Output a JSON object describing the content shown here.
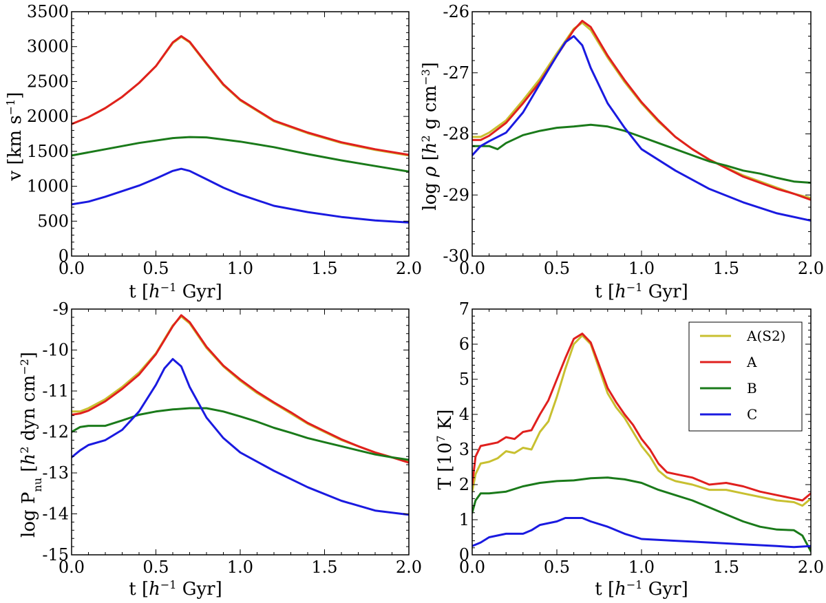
{
  "chart_data": [
    {
      "type": "line",
      "id": "velocity",
      "xlabel": "t [h⁻¹ Gyr]",
      "ylabel": "v [km s⁻¹]",
      "xlim": [
        0.0,
        2.0
      ],
      "ylim": [
        0,
        3500
      ],
      "xticks": [
        0.0,
        0.5,
        1.0,
        1.5,
        2.0
      ],
      "xtick_labels": [
        "0.0",
        "0.5",
        "1.0",
        "1.5",
        "2.0"
      ],
      "yticks": [
        0,
        500,
        1000,
        1500,
        2000,
        2500,
        3000,
        3500
      ],
      "ytick_labels": [
        "0",
        "500",
        "1000",
        "1500",
        "2000",
        "2500",
        "3000",
        "3500"
      ],
      "series": [
        {
          "name": "A(S2)",
          "color": "#c8c030",
          "x": [
            0,
            0.1,
            0.2,
            0.3,
            0.4,
            0.5,
            0.6,
            0.65,
            0.7,
            0.8,
            0.9,
            1.0,
            1.2,
            1.4,
            1.6,
            1.8,
            2.0
          ],
          "y": [
            1890,
            1990,
            2120,
            2280,
            2480,
            2720,
            3050,
            3140,
            3060,
            2750,
            2450,
            2230,
            1930,
            1760,
            1620,
            1520,
            1440
          ]
        },
        {
          "name": "A",
          "color": "#e0201e",
          "x": [
            0,
            0.1,
            0.2,
            0.3,
            0.4,
            0.5,
            0.6,
            0.65,
            0.7,
            0.8,
            0.9,
            1.0,
            1.2,
            1.4,
            1.6,
            1.8,
            2.0
          ],
          "y": [
            1890,
            1990,
            2120,
            2280,
            2480,
            2720,
            3060,
            3150,
            3070,
            2760,
            2460,
            2240,
            1940,
            1770,
            1630,
            1530,
            1450
          ]
        },
        {
          "name": "B",
          "color": "#1a7a1a",
          "x": [
            0,
            0.2,
            0.4,
            0.6,
            0.7,
            0.8,
            1.0,
            1.2,
            1.4,
            1.6,
            1.8,
            2.0
          ],
          "y": [
            1440,
            1530,
            1620,
            1690,
            1705,
            1700,
            1640,
            1560,
            1460,
            1370,
            1290,
            1210
          ]
        },
        {
          "name": "C",
          "color": "#1a1ae0",
          "x": [
            0,
            0.1,
            0.2,
            0.3,
            0.4,
            0.5,
            0.6,
            0.65,
            0.7,
            0.8,
            0.9,
            1.0,
            1.2,
            1.4,
            1.6,
            1.8,
            2.0
          ],
          "y": [
            740,
            780,
            850,
            930,
            1010,
            1110,
            1220,
            1250,
            1220,
            1100,
            980,
            880,
            720,
            630,
            560,
            510,
            480
          ]
        }
      ]
    },
    {
      "type": "line",
      "id": "density",
      "xlabel": "t [h⁻¹ Gyr]",
      "ylabel": "log ρ [h² g cm⁻³]",
      "xlim": [
        0.0,
        2.0
      ],
      "ylim": [
        -30,
        -26
      ],
      "xticks": [
        0.0,
        0.5,
        1.0,
        1.5,
        2.0
      ],
      "xtick_labels": [
        "0.0",
        "0.5",
        "1.0",
        "1.5",
        "2.0"
      ],
      "yticks": [
        -30,
        -29,
        -28,
        -27,
        -26
      ],
      "ytick_labels": [
        "-30",
        "-29",
        "-28",
        "-27",
        "-26"
      ],
      "series": [
        {
          "name": "A(S2)",
          "color": "#c8c030",
          "x": [
            0,
            0.05,
            0.1,
            0.2,
            0.3,
            0.4,
            0.5,
            0.6,
            0.65,
            0.7,
            0.8,
            0.9,
            1.0,
            1.1,
            1.2,
            1.3,
            1.4,
            1.5,
            1.6,
            1.7,
            1.8,
            1.9,
            2.0
          ],
          "y": [
            -28.05,
            -28.05,
            -27.98,
            -27.78,
            -27.45,
            -27.1,
            -26.68,
            -26.28,
            -26.18,
            -26.3,
            -26.75,
            -27.15,
            -27.5,
            -27.8,
            -28.05,
            -28.25,
            -28.42,
            -28.55,
            -28.68,
            -28.78,
            -28.88,
            -28.98,
            -29.05
          ]
        },
        {
          "name": "A",
          "color": "#e0201e",
          "x": [
            0,
            0.05,
            0.1,
            0.2,
            0.3,
            0.4,
            0.5,
            0.6,
            0.65,
            0.7,
            0.8,
            0.9,
            1.0,
            1.1,
            1.2,
            1.3,
            1.4,
            1.5,
            1.6,
            1.7,
            1.8,
            1.9,
            2.0
          ],
          "y": [
            -28.1,
            -28.1,
            -28.03,
            -27.82,
            -27.5,
            -27.15,
            -26.72,
            -26.3,
            -26.15,
            -26.25,
            -26.72,
            -27.12,
            -27.48,
            -27.78,
            -28.05,
            -28.25,
            -28.42,
            -28.56,
            -28.7,
            -28.8,
            -28.9,
            -28.98,
            -29.08
          ]
        },
        {
          "name": "B",
          "color": "#1a7a1a",
          "x": [
            0,
            0.1,
            0.15,
            0.2,
            0.3,
            0.4,
            0.5,
            0.6,
            0.7,
            0.8,
            0.9,
            1.0,
            1.1,
            1.2,
            1.3,
            1.4,
            1.5,
            1.6,
            1.7,
            1.8,
            1.9,
            2.0
          ],
          "y": [
            -28.2,
            -28.2,
            -28.25,
            -28.15,
            -28.02,
            -27.95,
            -27.9,
            -27.88,
            -27.85,
            -27.88,
            -27.95,
            -28.05,
            -28.15,
            -28.25,
            -28.35,
            -28.45,
            -28.52,
            -28.6,
            -28.65,
            -28.72,
            -28.78,
            -28.8
          ]
        },
        {
          "name": "C",
          "color": "#1a1ae0",
          "x": [
            0,
            0.05,
            0.1,
            0.2,
            0.3,
            0.4,
            0.5,
            0.55,
            0.6,
            0.65,
            0.7,
            0.8,
            0.9,
            1.0,
            1.2,
            1.4,
            1.6,
            1.8,
            2.0
          ],
          "y": [
            -28.35,
            -28.2,
            -28.12,
            -27.98,
            -27.65,
            -27.18,
            -26.72,
            -26.5,
            -26.4,
            -26.55,
            -26.92,
            -27.5,
            -27.9,
            -28.25,
            -28.6,
            -28.9,
            -29.12,
            -29.3,
            -29.42
          ]
        }
      ]
    },
    {
      "type": "line",
      "id": "pressure",
      "xlabel": "t [h⁻¹ Gyr]",
      "ylabel": "log P_nu [h² dyn cm⁻²]",
      "xlim": [
        0.0,
        2.0
      ],
      "ylim": [
        -15,
        -9
      ],
      "xticks": [
        0.0,
        0.5,
        1.0,
        1.5,
        2.0
      ],
      "xtick_labels": [
        "0.0",
        "0.5",
        "1.0",
        "1.5",
        "2.0"
      ],
      "yticks": [
        -15,
        -14,
        -13,
        -12,
        -11,
        -10,
        -9
      ],
      "ytick_labels": [
        "-15",
        "-14",
        "-13",
        "-12",
        "-11",
        "-10",
        "-9"
      ],
      "series": [
        {
          "name": "A(S2)",
          "color": "#c8c030",
          "x": [
            0,
            0.05,
            0.1,
            0.2,
            0.3,
            0.4,
            0.5,
            0.6,
            0.65,
            0.7,
            0.8,
            0.9,
            1.0,
            1.1,
            1.2,
            1.3,
            1.4,
            1.5,
            1.6,
            1.7,
            1.8,
            1.9,
            2.0
          ],
          "y": [
            -11.5,
            -11.5,
            -11.42,
            -11.2,
            -10.9,
            -10.55,
            -10.08,
            -9.4,
            -9.18,
            -9.35,
            -9.95,
            -10.4,
            -10.75,
            -11.05,
            -11.3,
            -11.55,
            -11.8,
            -12.0,
            -12.2,
            -12.35,
            -12.5,
            -12.62,
            -12.72
          ]
        },
        {
          "name": "A",
          "color": "#e0201e",
          "x": [
            0,
            0.05,
            0.1,
            0.2,
            0.3,
            0.4,
            0.5,
            0.6,
            0.65,
            0.7,
            0.8,
            0.9,
            1.0,
            1.1,
            1.2,
            1.3,
            1.4,
            1.5,
            1.6,
            1.7,
            1.8,
            1.9,
            2.0
          ],
          "y": [
            -11.58,
            -11.55,
            -11.48,
            -11.25,
            -10.95,
            -10.6,
            -10.1,
            -9.42,
            -9.15,
            -9.32,
            -9.92,
            -10.38,
            -10.72,
            -11.02,
            -11.28,
            -11.52,
            -11.78,
            -11.98,
            -12.18,
            -12.35,
            -12.5,
            -12.62,
            -12.75
          ]
        },
        {
          "name": "B",
          "color": "#1a7a1a",
          "x": [
            0,
            0.05,
            0.1,
            0.2,
            0.3,
            0.4,
            0.5,
            0.6,
            0.7,
            0.8,
            0.9,
            1.0,
            1.1,
            1.2,
            1.3,
            1.4,
            1.5,
            1.6,
            1.7,
            1.8,
            1.9,
            2.0
          ],
          "y": [
            -12.0,
            -11.88,
            -11.85,
            -11.85,
            -11.72,
            -11.58,
            -11.5,
            -11.45,
            -11.42,
            -11.42,
            -11.5,
            -11.62,
            -11.75,
            -11.9,
            -12.02,
            -12.15,
            -12.25,
            -12.35,
            -12.45,
            -12.55,
            -12.62,
            -12.68
          ]
        },
        {
          "name": "C",
          "color": "#1a1ae0",
          "x": [
            0,
            0.05,
            0.1,
            0.2,
            0.3,
            0.4,
            0.5,
            0.55,
            0.6,
            0.65,
            0.7,
            0.8,
            0.9,
            1.0,
            1.2,
            1.4,
            1.6,
            1.8,
            2.0
          ],
          "y": [
            -12.62,
            -12.45,
            -12.32,
            -12.2,
            -11.95,
            -11.5,
            -10.85,
            -10.45,
            -10.22,
            -10.4,
            -10.9,
            -11.65,
            -12.15,
            -12.5,
            -12.95,
            -13.35,
            -13.68,
            -13.92,
            -14.02
          ]
        }
      ]
    },
    {
      "type": "line",
      "id": "temperature",
      "xlabel": "t [h⁻¹ Gyr]",
      "ylabel": "T [10⁷ K]",
      "xlim": [
        0.0,
        2.0
      ],
      "ylim": [
        0,
        7
      ],
      "xticks": [
        0.0,
        0.5,
        1.0,
        1.5,
        2.0
      ],
      "xtick_labels": [
        "0.0",
        "0.5",
        "1.0",
        "1.5",
        "2.0"
      ],
      "yticks": [
        0,
        1,
        2,
        3,
        4,
        5,
        6,
        7
      ],
      "ytick_labels": [
        "0",
        "1",
        "2",
        "3",
        "4",
        "5",
        "6",
        "7"
      ],
      "legend": {
        "placement": "top-right",
        "entries": [
          "A(S2)",
          "A",
          "B",
          "C"
        ]
      },
      "series": [
        {
          "name": "A(S2)",
          "color": "#c8c030",
          "x": [
            0,
            0.02,
            0.05,
            0.1,
            0.15,
            0.2,
            0.25,
            0.3,
            0.35,
            0.4,
            0.45,
            0.5,
            0.55,
            0.6,
            0.65,
            0.7,
            0.75,
            0.8,
            0.85,
            0.9,
            0.95,
            1.0,
            1.05,
            1.1,
            1.15,
            1.2,
            1.3,
            1.4,
            1.5,
            1.6,
            1.7,
            1.8,
            1.9,
            1.95,
            2.0
          ],
          "y": [
            1.8,
            2.3,
            2.6,
            2.65,
            2.75,
            2.95,
            2.9,
            3.05,
            3.0,
            3.5,
            3.8,
            4.5,
            5.3,
            6.0,
            6.25,
            6.0,
            5.3,
            4.6,
            4.2,
            3.9,
            3.5,
            3.1,
            2.8,
            2.4,
            2.2,
            2.1,
            2.0,
            1.85,
            1.85,
            1.75,
            1.65,
            1.55,
            1.5,
            1.4,
            1.6
          ]
        },
        {
          "name": "A",
          "color": "#e0201e",
          "x": [
            0,
            0.02,
            0.05,
            0.1,
            0.15,
            0.2,
            0.25,
            0.3,
            0.35,
            0.4,
            0.45,
            0.5,
            0.55,
            0.6,
            0.65,
            0.7,
            0.75,
            0.8,
            0.85,
            0.9,
            0.95,
            1.0,
            1.05,
            1.1,
            1.15,
            1.2,
            1.3,
            1.4,
            1.5,
            1.6,
            1.7,
            1.8,
            1.9,
            1.95,
            2.0
          ],
          "y": [
            2.0,
            2.8,
            3.1,
            3.15,
            3.2,
            3.35,
            3.3,
            3.5,
            3.55,
            4.0,
            4.4,
            5.0,
            5.6,
            6.15,
            6.3,
            6.05,
            5.4,
            4.75,
            4.35,
            4.0,
            3.7,
            3.3,
            3.0,
            2.6,
            2.35,
            2.3,
            2.2,
            2.0,
            2.05,
            1.95,
            1.8,
            1.7,
            1.6,
            1.55,
            1.75
          ]
        },
        {
          "name": "B",
          "color": "#1a7a1a",
          "x": [
            0,
            0.02,
            0.05,
            0.1,
            0.2,
            0.3,
            0.4,
            0.5,
            0.6,
            0.7,
            0.8,
            0.9,
            1.0,
            1.1,
            1.2,
            1.3,
            1.4,
            1.5,
            1.6,
            1.7,
            1.8,
            1.9,
            1.95,
            2.0
          ],
          "y": [
            1.2,
            1.55,
            1.75,
            1.75,
            1.8,
            1.95,
            2.05,
            2.1,
            2.12,
            2.18,
            2.2,
            2.15,
            2.05,
            1.85,
            1.7,
            1.55,
            1.35,
            1.15,
            0.95,
            0.8,
            0.72,
            0.7,
            0.55,
            0.1
          ]
        },
        {
          "name": "C",
          "color": "#1a1ae0",
          "x": [
            0,
            0.05,
            0.1,
            0.2,
            0.3,
            0.35,
            0.4,
            0.5,
            0.55,
            0.6,
            0.65,
            0.7,
            0.8,
            0.9,
            1.0,
            1.2,
            1.4,
            1.6,
            1.8,
            1.9,
            2.0
          ],
          "y": [
            0.25,
            0.35,
            0.5,
            0.6,
            0.6,
            0.7,
            0.85,
            0.95,
            1.05,
            1.05,
            1.05,
            0.95,
            0.8,
            0.6,
            0.45,
            0.4,
            0.35,
            0.3,
            0.25,
            0.22,
            0.25
          ]
        }
      ]
    }
  ]
}
